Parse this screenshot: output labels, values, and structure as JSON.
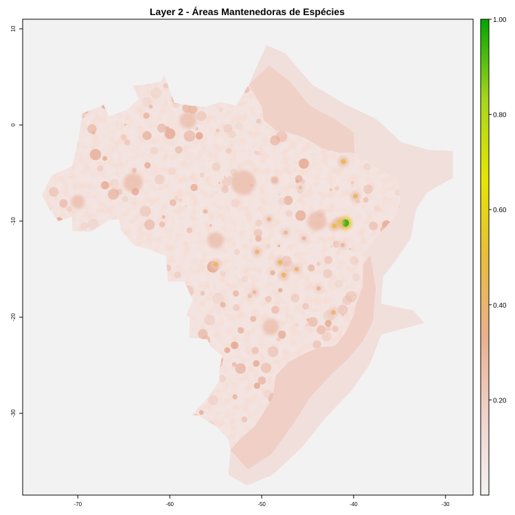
{
  "title": "Layer 2 - Áreas Mantenedoras de Espécies",
  "map": {
    "type": "raster",
    "region": "Brazil",
    "background_color": "#f2f2f2",
    "xlim": [
      -76,
      -27
    ],
    "ylim": [
      -38.5,
      11
    ],
    "x_ticks": [
      {
        "value": -70,
        "label": "-70"
      },
      {
        "value": -60,
        "label": "-60"
      },
      {
        "value": -50,
        "label": "-50"
      },
      {
        "value": -40,
        "label": "-40"
      },
      {
        "value": -30,
        "label": "-30"
      }
    ],
    "y_ticks": [
      {
        "value": 10,
        "label": "10"
      },
      {
        "value": 0,
        "label": "0"
      },
      {
        "value": -10,
        "label": "-10"
      },
      {
        "value": -20,
        "label": "-20"
      },
      {
        "value": -30,
        "label": "-30"
      }
    ],
    "hotspots": [
      {
        "lon": -40.9,
        "lat": -10.2,
        "value": 0.95
      },
      {
        "lon": -41.6,
        "lat": -10.2,
        "value": 0.55
      },
      {
        "lon": -42.1,
        "lat": -10.5,
        "value": 0.45
      },
      {
        "lon": -41.1,
        "lat": -3.8,
        "value": 0.45
      },
      {
        "lon": -39.8,
        "lat": -7.4,
        "value": 0.42
      },
      {
        "lon": -48.0,
        "lat": -14.3,
        "value": 0.42
      },
      {
        "lon": -47.6,
        "lat": -15.6,
        "value": 0.42
      },
      {
        "lon": -55.0,
        "lat": -14.5,
        "value": 0.42
      },
      {
        "lon": -50.5,
        "lat": -13.2,
        "value": 0.38
      },
      {
        "lon": -42.2,
        "lat": -19.5,
        "value": 0.38
      },
      {
        "lon": -46.2,
        "lat": -15.0,
        "value": 0.36
      },
      {
        "lon": -49.2,
        "lat": -9.8,
        "value": 0.32
      },
      {
        "lon": -45.4,
        "lat": -11.8,
        "value": 0.3
      },
      {
        "lon": -47.4,
        "lat": -11.2,
        "value": 0.3
      },
      {
        "lon": -50.8,
        "lat": -17.4,
        "value": 0.3
      },
      {
        "lon": -43.8,
        "lat": -17.0,
        "value": 0.32
      },
      {
        "lon": -45.8,
        "lat": -6.5,
        "value": 0.26
      },
      {
        "lon": -41.2,
        "lat": -12.5,
        "value": 0.3
      }
    ]
  },
  "legend": {
    "min": 0,
    "max": 1,
    "colors": [
      "#f2f2f2",
      "#f0d2cb",
      "#eab08f",
      "#e9bd3a",
      "#e5e600",
      "#a6d61d",
      "#00a600"
    ],
    "ticks": [
      {
        "value": 1.0,
        "label": "1.00"
      },
      {
        "value": 0.8,
        "label": "0.80"
      },
      {
        "value": 0.6,
        "label": "0.60"
      },
      {
        "value": 0.4,
        "label": "0.40"
      },
      {
        "value": 0.2,
        "label": "0.20"
      }
    ]
  }
}
